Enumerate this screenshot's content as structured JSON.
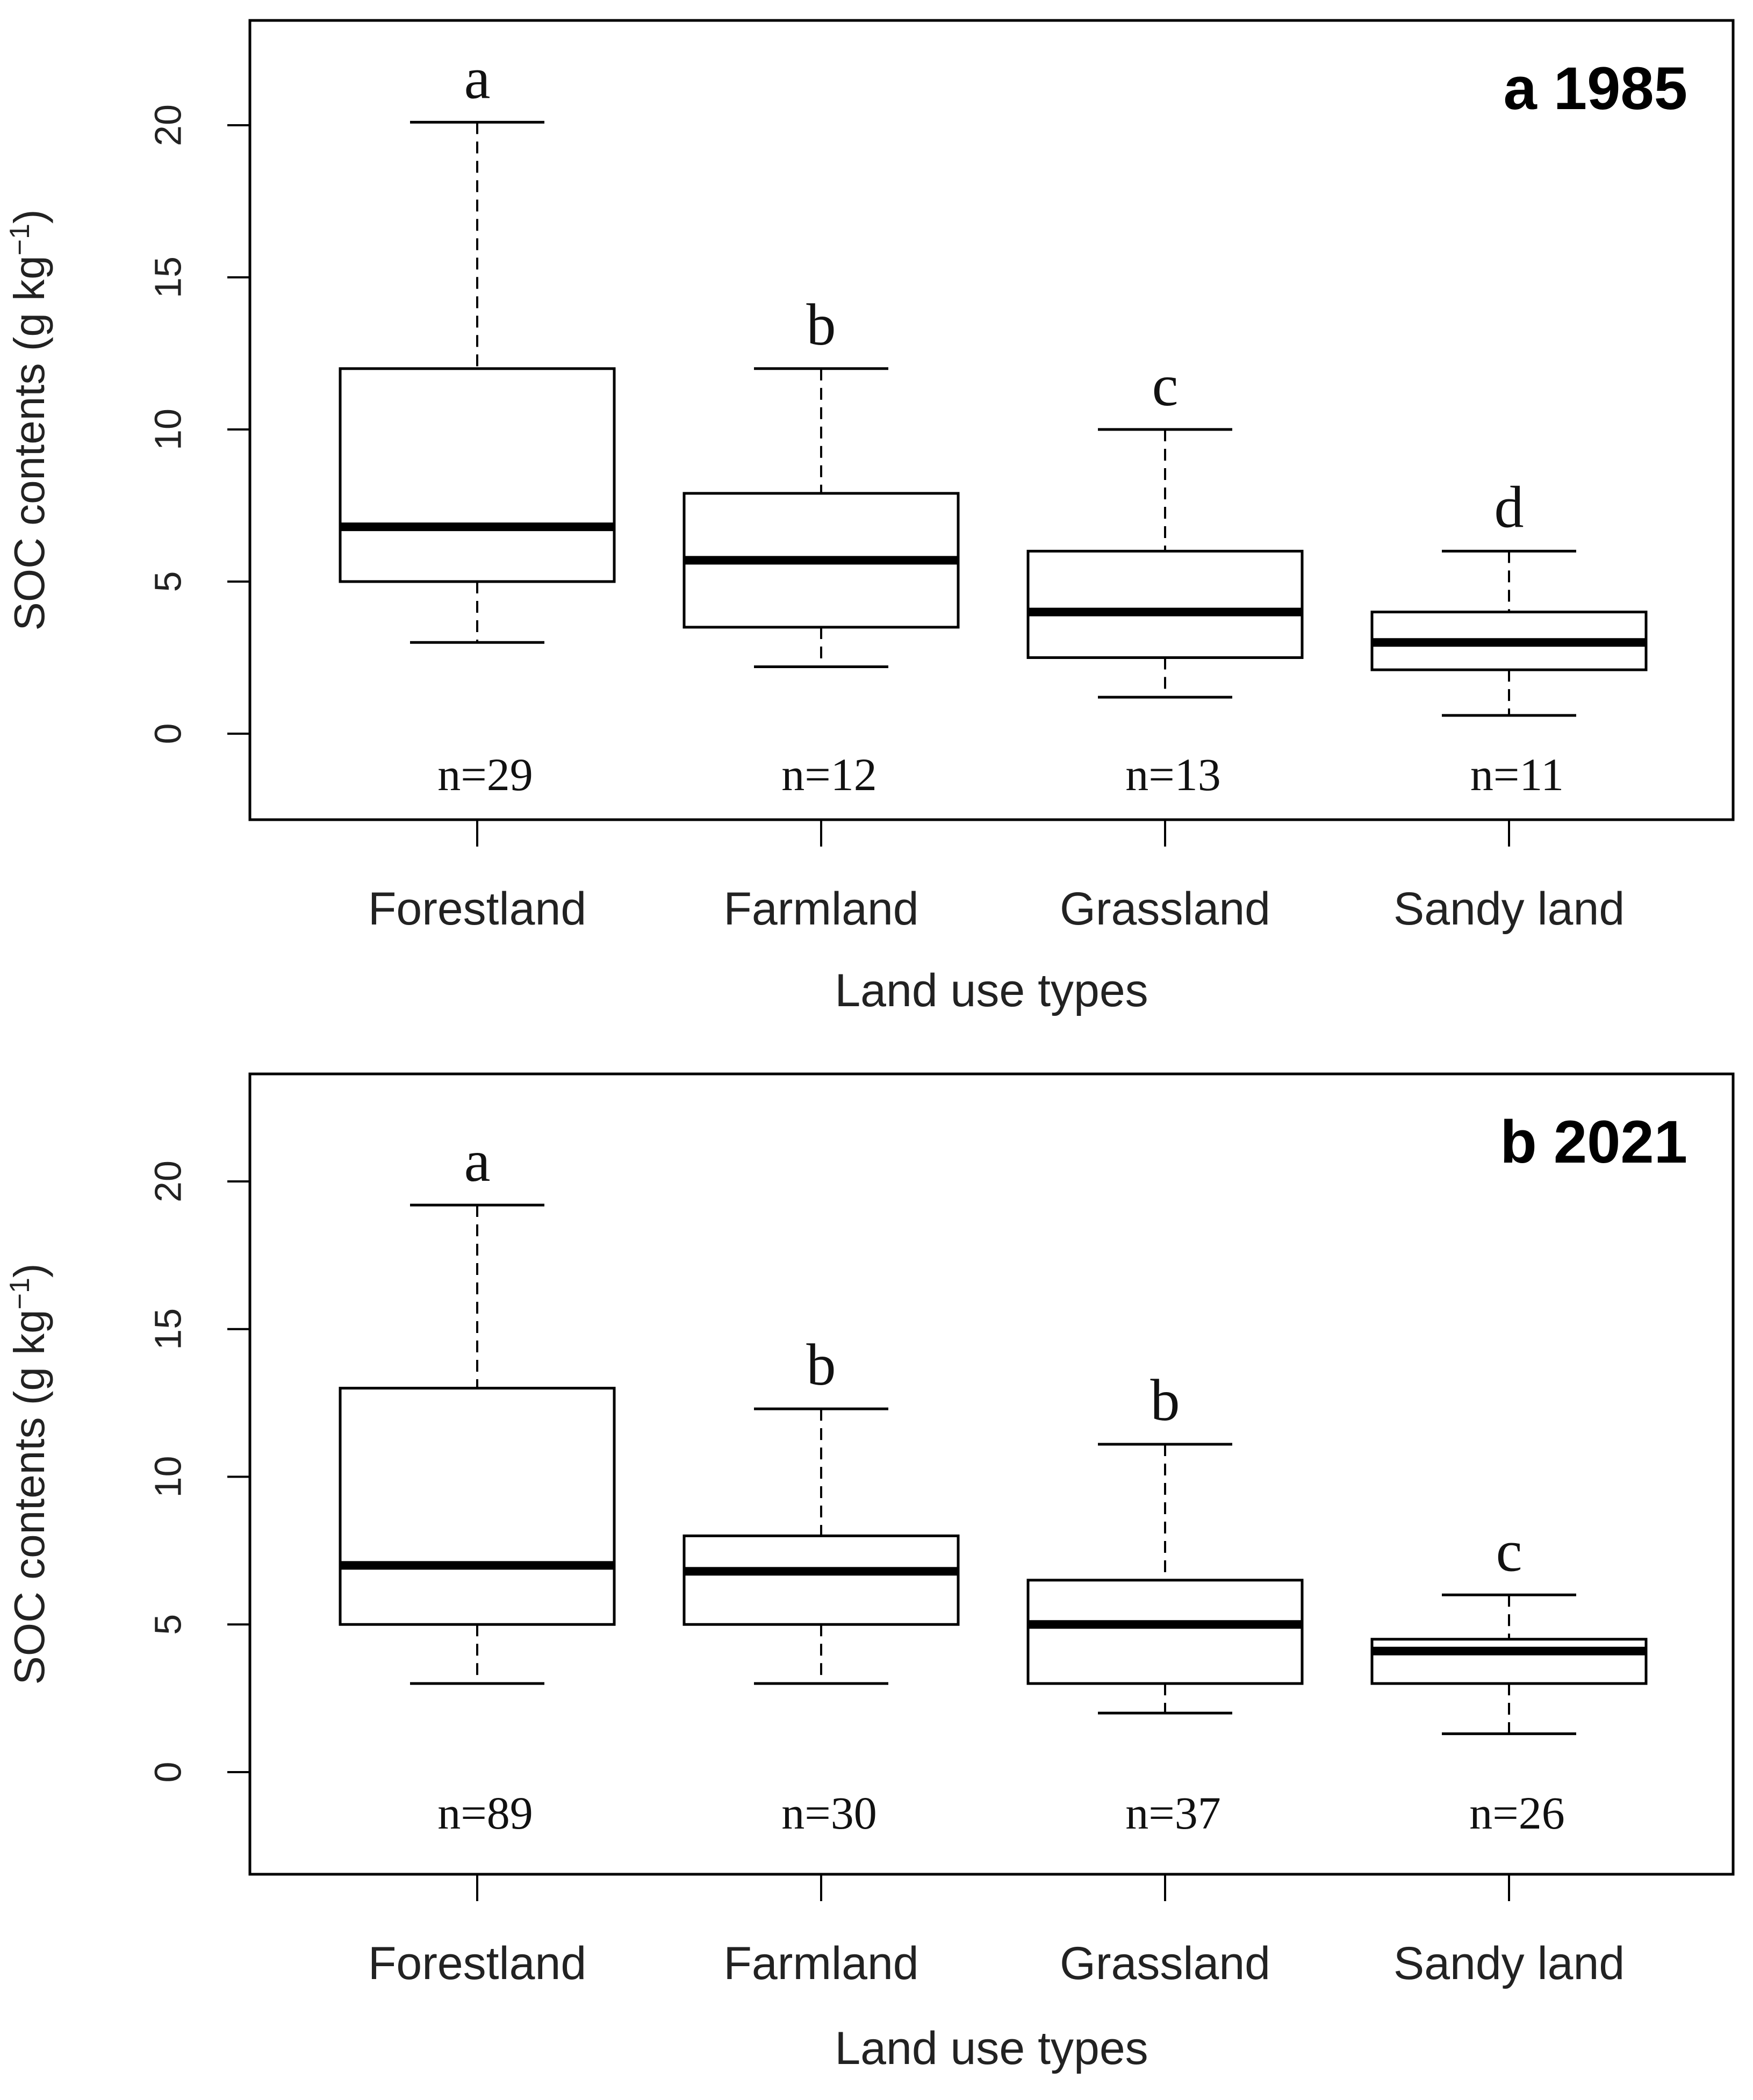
{
  "chart_data": [
    {
      "type": "boxplot",
      "panel_label": "a",
      "title": "1985",
      "xlabel": "Land use types",
      "ylabel": "SOC contents (g kg",
      "ylabel_superscript": "−1",
      "ylabel_close": ")",
      "ylim": [
        -2.8,
        23.5
      ],
      "yticks": [
        "0",
        "5",
        "10",
        "15",
        "20"
      ],
      "ytick_values": [
        0,
        5,
        10,
        15,
        20
      ],
      "categories": [
        "Forestland",
        "Farmland",
        "Grassland",
        "Sandy land"
      ],
      "boxes": [
        {
          "whisker_low": 3.0,
          "q1": 5.0,
          "median": 6.8,
          "q3": 12.0,
          "whisker_high": 20.1,
          "letter": "a",
          "n_label": "n=29"
        },
        {
          "whisker_low": 2.2,
          "q1": 3.5,
          "median": 5.7,
          "q3": 7.9,
          "whisker_high": 12.0,
          "letter": "b",
          "n_label": "n=12"
        },
        {
          "whisker_low": 1.2,
          "q1": 2.5,
          "median": 4.0,
          "q3": 6.0,
          "whisker_high": 10.0,
          "letter": "c",
          "n_label": "n=13"
        },
        {
          "whisker_low": 0.6,
          "q1": 2.1,
          "median": 3.0,
          "q3": 4.0,
          "whisker_high": 6.0,
          "letter": "d",
          "n_label": "n=11"
        }
      ]
    },
    {
      "type": "boxplot",
      "panel_label": "b",
      "title": "2021",
      "xlabel": "Land use types",
      "ylabel": "SOC contents (g kg",
      "ylabel_superscript": "−1",
      "ylabel_close": ")",
      "ylim": [
        -3.4,
        23.5
      ],
      "yticks": [
        "0",
        "5",
        "10",
        "15",
        "20"
      ],
      "ytick_values": [
        0,
        5,
        10,
        15,
        20
      ],
      "categories": [
        "Forestland",
        "Farmland",
        "Grassland",
        "Sandy land"
      ],
      "boxes": [
        {
          "whisker_low": 3.0,
          "q1": 5.0,
          "median": 7.0,
          "q3": 13.0,
          "whisker_high": 19.2,
          "letter": "a",
          "n_label": "n=89"
        },
        {
          "whisker_low": 3.0,
          "q1": 5.0,
          "median": 6.8,
          "q3": 8.0,
          "whisker_high": 12.3,
          "letter": "b",
          "n_label": "n=30"
        },
        {
          "whisker_low": 2.0,
          "q1": 3.0,
          "median": 5.0,
          "q3": 6.5,
          "whisker_high": 11.1,
          "letter": "b",
          "n_label": "n=37"
        },
        {
          "whisker_low": 1.3,
          "q1": 3.0,
          "median": 4.1,
          "q3": 4.5,
          "whisker_high": 6.0,
          "letter": "c",
          "n_label": "n=26"
        }
      ]
    }
  ]
}
